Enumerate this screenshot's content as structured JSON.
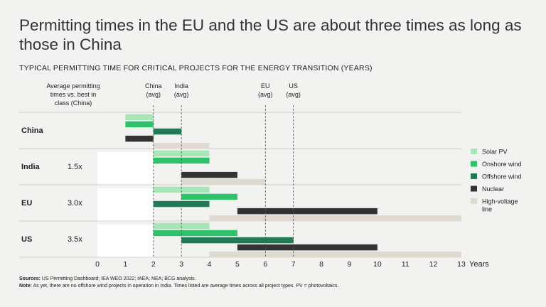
{
  "title": "Permitting times in the EU and the US are about three times as long as those in China",
  "subtitle": "TYPICAL PERMITTING TIME FOR CRITICAL PROJECTS FOR THE ENERGY TRANSITION (YEARS)",
  "footer": {
    "sources_label": "Sources:",
    "sources_text": " US Permitting Dashboard; IEA WEO 2022; IAEA; NEA; BCG analysis.",
    "note_label": "Note:",
    "note_text": " As yet, there are no offshore wind projects in operation in India. Times listed are average times across all project types. PV = photovoltaics."
  },
  "chart_data": {
    "type": "bar",
    "orientation": "floating-horizontal",
    "title": "Permitting times in the EU and the US are about three times as long as those in China",
    "xlabel": "Years",
    "xlim": [
      0,
      13
    ],
    "x_ticks": [
      "0",
      "1",
      "2",
      "3",
      "4",
      "5",
      "6",
      "7",
      "8",
      "9",
      "10",
      "11",
      "12",
      "13"
    ],
    "row_header": [
      "Average permitting",
      "times vs. best in",
      "class (China)"
    ],
    "categories": [
      "China",
      "India",
      "EU",
      "US"
    ],
    "ratios": [
      "",
      "1.5x",
      "3.0x",
      "3.5x"
    ],
    "reference_lines": [
      {
        "label": [
          "China",
          "(avg)"
        ],
        "value": 2
      },
      {
        "label": [
          "India",
          "(avg)"
        ],
        "value": 3
      },
      {
        "label": [
          "EU",
          "(avg)"
        ],
        "value": 6
      },
      {
        "label": [
          "US",
          "(avg)"
        ],
        "value": 7
      }
    ],
    "best_in_class_highlight": 2,
    "series": [
      {
        "name": "Solar PV",
        "color": "#a8e6b8",
        "ranges": [
          [
            1,
            2
          ],
          [
            2,
            4
          ],
          [
            2,
            4
          ],
          [
            2,
            4
          ]
        ]
      },
      {
        "name": "Onshore wind",
        "color": "#2ec36a",
        "ranges": [
          [
            1,
            2
          ],
          [
            2,
            4
          ],
          [
            3,
            5
          ],
          [
            2,
            5
          ]
        ]
      },
      {
        "name": "Offshore wind",
        "color": "#1f7a55",
        "ranges": [
          [
            2,
            3
          ],
          null,
          [
            2,
            4
          ],
          [
            3,
            7
          ]
        ]
      },
      {
        "name": "Nuclear",
        "color": "#333333",
        "ranges": [
          [
            1,
            2
          ],
          [
            3,
            5
          ],
          [
            5,
            10
          ],
          [
            5,
            10
          ]
        ]
      },
      {
        "name": "High-voltage line",
        "color": "#dedad2",
        "ranges": [
          [
            2,
            4
          ],
          [
            3,
            6
          ],
          [
            4,
            13
          ],
          [
            4,
            13
          ]
        ]
      }
    ],
    "legend": [
      "Solar PV",
      "Onshore wind",
      "Offshore wind",
      "Nuclear",
      [
        "High-voltage",
        "line"
      ]
    ]
  }
}
